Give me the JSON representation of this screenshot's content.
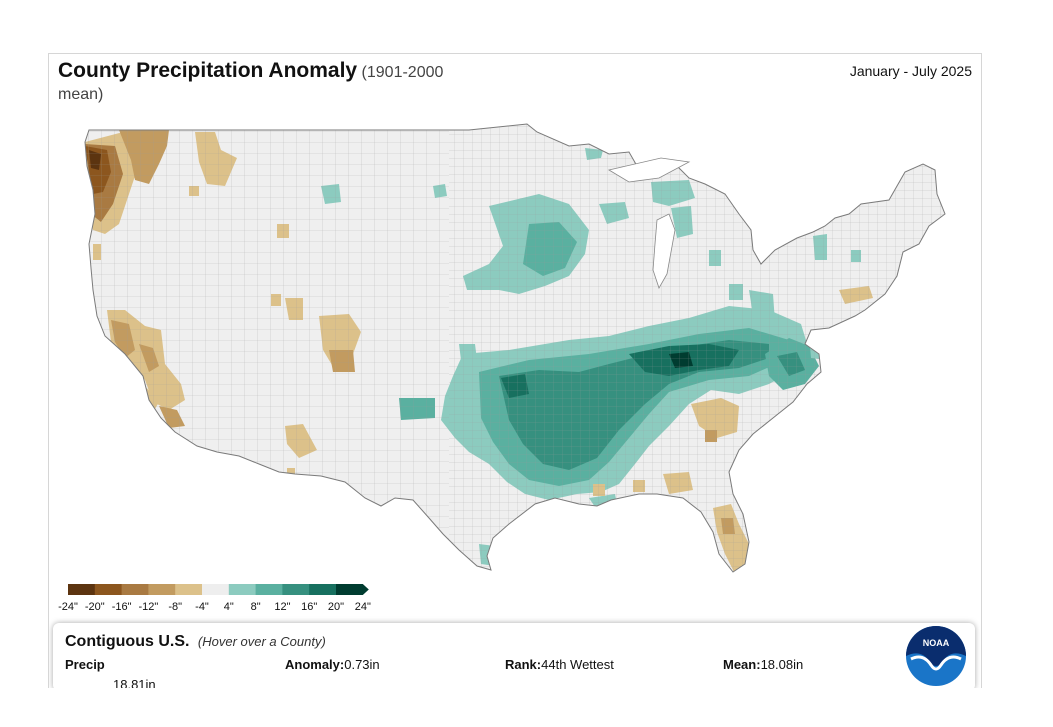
{
  "header": {
    "title": "County Precipitation Anomaly",
    "subtitle_part1": "(1901-2000",
    "subtitle_part2": "mean)",
    "period": "January - July 2025"
  },
  "legend": {
    "labels": [
      "-24\"",
      "-20\"",
      "-16\"",
      "-12\"",
      "-8\"",
      "-4\"",
      "4\"",
      "8\"",
      "12\"",
      "16\"",
      "20\"",
      "24\""
    ],
    "colors": [
      "#5c3410",
      "#8c561e",
      "#a97a42",
      "#c29b60",
      "#dcc18a",
      "#eeeeee",
      "#8ccbbf",
      "#5ab0a0",
      "#36907f",
      "#17705f",
      "#003c30"
    ]
  },
  "panel": {
    "title": "Contiguous U.S.",
    "hint": "(Hover over a County)",
    "precip_label": "Precip",
    "anomaly_label": "Anomaly:",
    "anomaly_value": "0.73in",
    "rank_label": "Rank:",
    "rank_value": "44th Wettest",
    "mean_label": "Mean:",
    "mean_value": "18.08in",
    "cut_value": "18.81in"
  },
  "logo": {
    "text": "NOAA"
  },
  "map_colors": {
    "land": "#efefef",
    "border": "#8a8a8a",
    "dry_light": "#dcc18a",
    "dry_mid": "#c29b60",
    "dry_dark": "#a97a42",
    "dry_darkest": "#8c561e",
    "wet_light": "#8ccbbf",
    "wet_mid": "#5ab0a0",
    "wet_dark": "#36907f",
    "wet_darkest": "#17705f"
  }
}
